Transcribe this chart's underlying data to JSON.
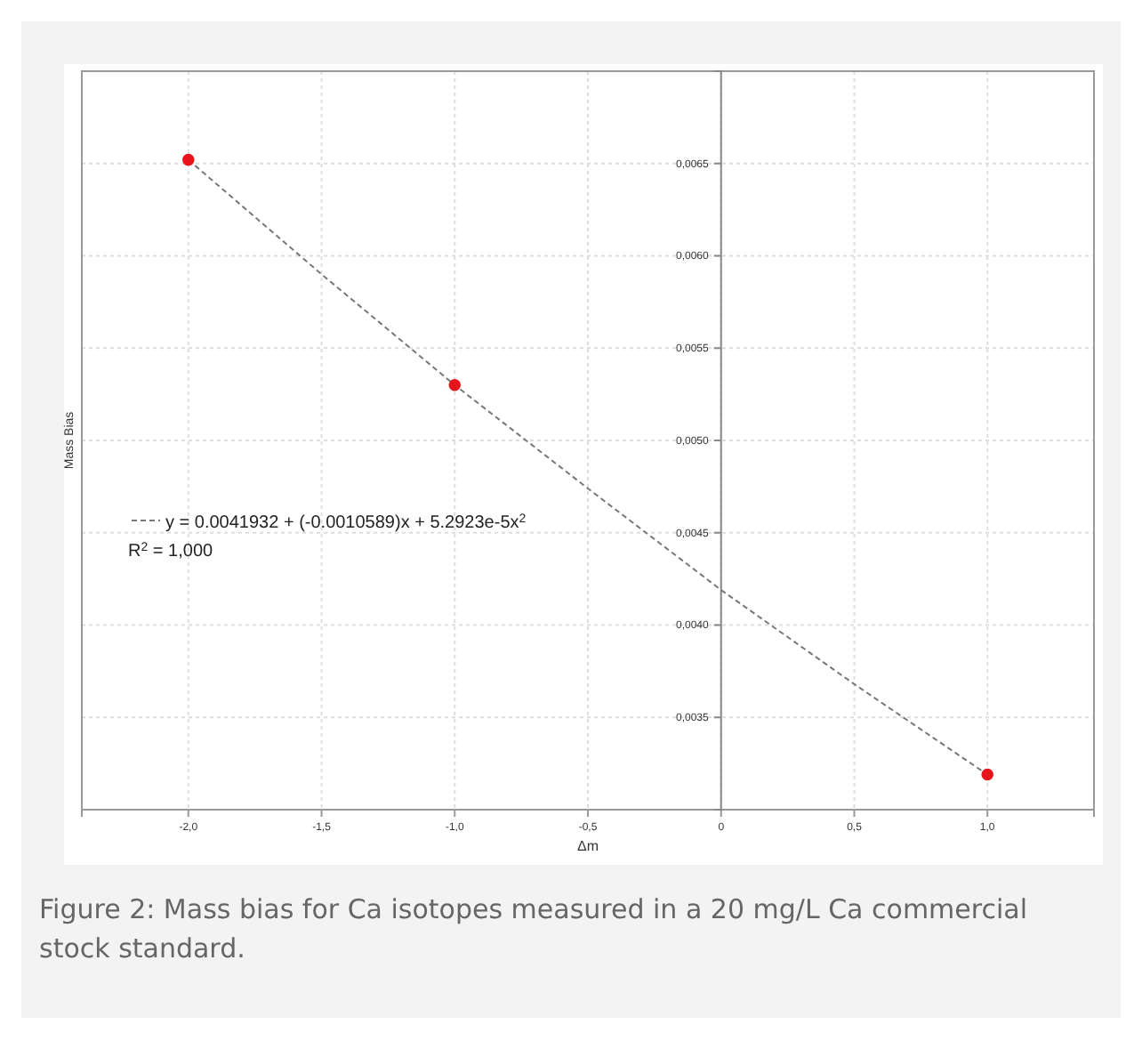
{
  "chart_data": {
    "type": "scatter",
    "xlabel": "Δm",
    "ylabel": "Mass Bias",
    "series": [
      {
        "color": "#e8141c",
        "x": [
          -2,
          -1,
          1
        ],
        "values": [
          0.00652,
          0.0053,
          0.00319
        ],
        "marker": "circle"
      },
      {
        "type": "line",
        "name": "y = 0.0041932 + (-0.0010589)x + 5.2923e-5x$^{2}$",
        "color": "#777777",
        "line_style": "dashed",
        "marker": "none",
        "x": [
          -2,
          -1.5,
          -1,
          -0.5,
          0,
          0.5,
          1
        ],
        "values": [
          0.00652,
          0.0059,
          0.0053,
          0.00474,
          0.00419,
          0.00368,
          0.00319
        ]
      }
    ],
    "xlim": [
      -2.4,
      1.4
    ],
    "xticks": [
      {
        "value": -2,
        "label": "-2,0"
      },
      {
        "value": -1.5,
        "label": "-1,5"
      },
      {
        "value": -1,
        "label": "-1,0"
      },
      {
        "value": -0.5,
        "label": "-0,5"
      },
      {
        "value": 0,
        "label": "0"
      },
      {
        "value": 0.5,
        "label": "0,5"
      },
      {
        "value": 1,
        "label": "1,0"
      }
    ],
    "ylim": [
      0.003,
      0.007
    ],
    "yticks": [
      {
        "value": 0.0035,
        "label": "0,0035"
      },
      {
        "value": 0.004,
        "label": "0,0040"
      },
      {
        "value": 0.0045,
        "label": "0,0045"
      },
      {
        "value": 0.005,
        "label": "0,0050"
      },
      {
        "value": 0.0055,
        "label": "0,0055"
      },
      {
        "value": 0.006,
        "label": "0,0060"
      },
      {
        "value": 0.0065,
        "label": "0,0065"
      }
    ],
    "grid": true,
    "legend": "left",
    "annotations": [
      "R$^{2}$ = 1,000",
      "Figure 2: Mass bias for Ca isotopes measured in a 20 mg/L Ca commercial stock standard."
    ]
  }
}
